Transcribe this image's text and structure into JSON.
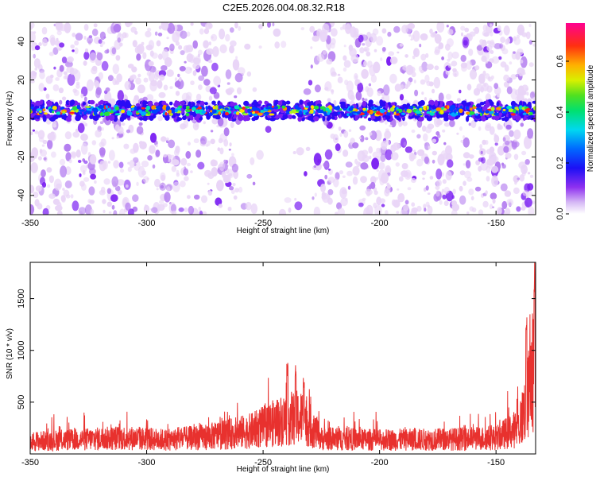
{
  "figure": {
    "title": "C2E5.2026.004.08.32.R18"
  },
  "colors": {
    "snr_line": "#e8312e",
    "background": "#ffffff",
    "colormap": [
      "#ffffff",
      "#e9d5f7",
      "#b37cf0",
      "#7b1ff2",
      "#2a0cf5",
      "#0040ff",
      "#00a8ff",
      "#00e0c0",
      "#22e040",
      "#b0f020",
      "#ffe000",
      "#ff9000",
      "#ff2020",
      "#ff0090"
    ]
  },
  "chart_data": [
    {
      "id": "spectrogram",
      "type": "heatmap",
      "title": "C2E5.2026.004.08.32.R18",
      "xlabel": "Height of straight line (km)",
      "ylabel": "Frequency (Hz)",
      "xlim": [
        -350,
        -133
      ],
      "ylim": [
        -50,
        50
      ],
      "x_ticks": [
        -350,
        -300,
        -250,
        -200,
        -150
      ],
      "y_ticks": [
        -40,
        -20,
        0,
        20,
        40
      ],
      "band": {
        "center_hz": 4,
        "half_width_hz": 3,
        "description": "strong continuous band near 0–8 Hz across all heights"
      },
      "sparse_gap_km": [
        -260,
        -228
      ],
      "colorbar": {
        "label": "Normalized spectral amplitude",
        "range": [
          0.0,
          0.75
        ],
        "ticks": [
          0.0,
          0.2,
          0.4,
          0.6
        ]
      }
    },
    {
      "id": "snr",
      "type": "line",
      "xlabel": "Height of straight line (km)",
      "ylabel": "SNR (10 * v/v)",
      "xlim": [
        -350,
        -133
      ],
      "ylim": [
        0,
        1850
      ],
      "x_ticks": [
        -350,
        -300,
        -250,
        -200,
        -150
      ],
      "y_ticks": [
        500,
        1000,
        1500
      ],
      "series": [
        {
          "name": "SNR",
          "baseline": 170,
          "noise_amplitude": 260,
          "features": [
            {
              "x": -350,
              "y": 180
            },
            {
              "x": -310,
              "y": 230
            },
            {
              "x": -290,
              "y": 200
            },
            {
              "x": -270,
              "y": 260
            },
            {
              "x": -255,
              "y": 330
            },
            {
              "x": -240,
              "y": 500
            },
            {
              "x": -233,
              "y": 520
            },
            {
              "x": -225,
              "y": 220
            },
            {
              "x": -200,
              "y": 200
            },
            {
              "x": -170,
              "y": 210
            },
            {
              "x": -150,
              "y": 230
            },
            {
              "x": -140,
              "y": 380
            },
            {
              "x": -136,
              "y": 850
            },
            {
              "x": -134,
              "y": 1250
            },
            {
              "x": -133,
              "y": 1800
            }
          ],
          "peaks": [
            {
              "x": -239.5,
              "y": 880
            },
            {
              "x": -236.0,
              "y": 860
            },
            {
              "x": -232.5,
              "y": 750
            },
            {
              "x": -137.0,
              "y": 1330
            },
            {
              "x": -133.5,
              "y": 1800
            }
          ]
        }
      ]
    }
  ]
}
